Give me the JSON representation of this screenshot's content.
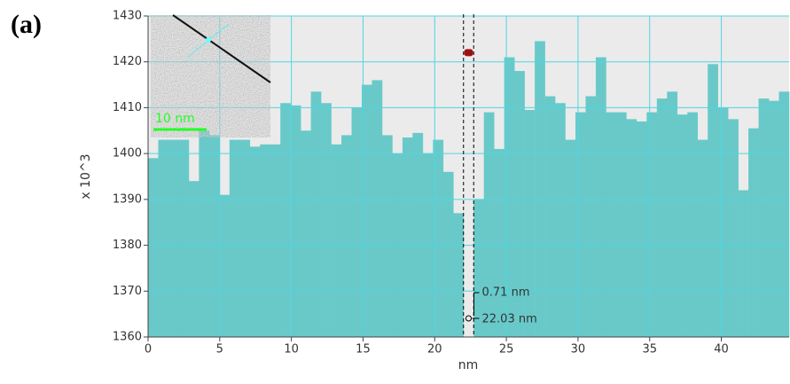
{
  "chart_data": {
    "type": "histogram",
    "panel_label": "(a)",
    "xlabel": "nm",
    "ylabel": "x 10^3",
    "bins": [
      0,
      0.71,
      1.42,
      2.13,
      2.84,
      3.55,
      4.26,
      4.97,
      5.68,
      6.39,
      7.1,
      7.81,
      8.52,
      9.23,
      9.94,
      10.65,
      11.36,
      12.07,
      12.78,
      13.49,
      14.2,
      14.91,
      15.62,
      16.33,
      17.04,
      17.75,
      18.46,
      19.17,
      19.88,
      20.59,
      21.3,
      22.01,
      22.72,
      23.43,
      24.14,
      24.85,
      25.56,
      26.27,
      26.98,
      27.69,
      28.4,
      29.11,
      29.82,
      30.53,
      31.24,
      31.95,
      32.66,
      33.37,
      34.08,
      34.79,
      35.5,
      36.21,
      36.92,
      37.63,
      38.34,
      39.05,
      39.76,
      40.47,
      41.18,
      41.89,
      42.6,
      43.31,
      44.02,
      44.73
    ],
    "values": [
      1399,
      1403,
      1403,
      1403,
      1394,
      1405,
      1404,
      1391,
      1403,
      1403,
      1401.5,
      1402,
      1402,
      1411,
      1410.5,
      1405,
      1413.5,
      1411,
      1402,
      1404,
      1410,
      1415,
      1416,
      1404,
      1400,
      1403.5,
      1404.5,
      1400,
      1403,
      1396,
      1387,
      1422,
      1390,
      1409,
      1401,
      1421,
      1418,
      1409.5,
      1424.5,
      1412.5,
      1411,
      1403,
      1409,
      1412.5,
      1421,
      1409,
      1409,
      1407.5,
      1407,
      1409,
      1412,
      1413.5,
      1408.5,
      1409,
      1403,
      1419.5,
      1410,
      1407.5,
      1392,
      1405.5,
      1412,
      1411.5,
      1413.5
    ],
    "color": "#69c9c9",
    "cursor_index": 31,
    "cursor_color": "#a01010",
    "grid": true,
    "grid_color": "#4fd6e0",
    "xlim": [
      0,
      44.73
    ],
    "xticks": [
      0,
      5,
      10,
      15,
      20,
      25,
      30,
      35,
      40
    ],
    "ylim": [
      1360,
      1430
    ],
    "yticks": [
      1360,
      1370,
      1380,
      1390,
      1400,
      1410,
      1420,
      1430
    ],
    "annotations": [
      "0.71 nm",
      "22.03 nm"
    ],
    "inset_scale_label": "10 nm"
  }
}
